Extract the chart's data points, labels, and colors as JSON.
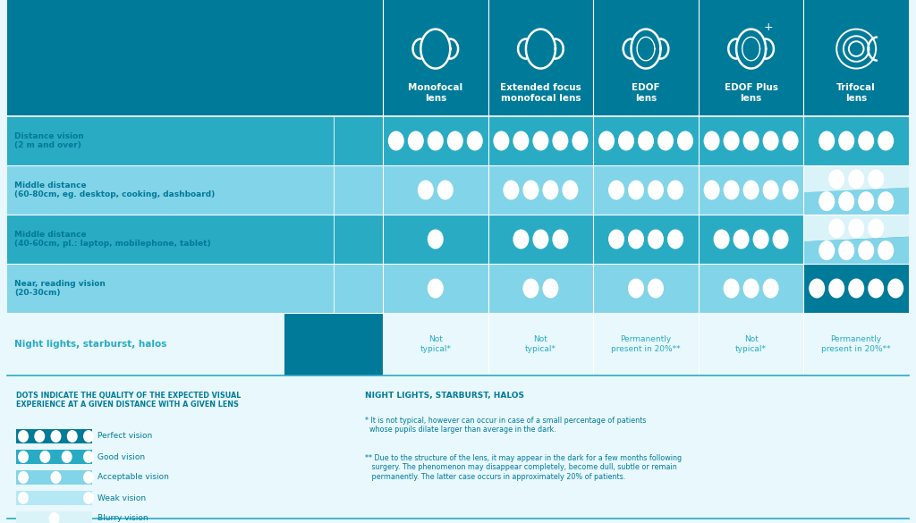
{
  "bg_color": "#e8f8fc",
  "header_bg": "#007a99",
  "teal_dark": "#007a99",
  "teal_mid": "#29abc4",
  "teal_light": "#82d4e8",
  "teal_lighter": "#c0ecf5",
  "teal_lightest": "#daf3f9",
  "white": "#ffffff",
  "columns": [
    "Monofocal\nlens",
    "Extended focus\nmonofocal lens",
    "EDOF\nlens",
    "EDOF Plus\nlens",
    "Trifocal\nlens"
  ],
  "rows": [
    "Distance vision\n(2 m and over)",
    "Middle distance\n(60-80cm, eg. desktop, cooking, dashboard)",
    "Middle distance\n(40-60cm, pl.: laptop, mobilephone, tablet)",
    "Near, reading vision\n(20-30cm)",
    "Night lights, starburst, halos"
  ],
  "dot_data": [
    [
      5,
      5,
      5,
      5,
      4
    ],
    [
      2,
      4,
      4,
      5,
      99
    ],
    [
      1,
      3,
      4,
      4,
      99
    ],
    [
      1,
      2,
      2,
      3,
      5
    ]
  ],
  "trifocal_split_rows": {
    "1": [
      3,
      4
    ],
    "2": [
      3,
      4
    ]
  },
  "night_row": [
    "Not\ntypical*",
    "Not\ntypical*",
    "Permanently\npresent in 20%**",
    "Not\ntypical*",
    "Permanently\npresent in 20%**"
  ],
  "night_text_teal": [
    true,
    true,
    false,
    true,
    false
  ],
  "row_bg_alt": [
    "light",
    "mid",
    "light",
    "mid"
  ],
  "legend_title": "DOTS INDICATE THE QUALITY OF THE EXPECTED VISUAL\nEXPERIENCE AT A GIVEN DISTANCE WITH A GIVEN LENS",
  "legend_items": [
    [
      5,
      "Perfect vision"
    ],
    [
      4,
      "Good vision"
    ],
    [
      3,
      "Acceptable vision"
    ],
    [
      2,
      "Weak vision"
    ],
    [
      1,
      "Blurry vision"
    ]
  ],
  "night_title": "NIGHT LIGHTS, STARBURST, HALOS",
  "footnote1": "* It is not typical, however can occur in case of a small percentage of patients\n  whose pupils dilate larger than average in the dark.",
  "footnote2": "** Due to the structure of the lens, it may appear in the dark for a few months following\n   surgery. The phenomenon may disappear completely, become dull, subtle or remain\n   permanently. The latter case occurs in approximately 20% of patients."
}
